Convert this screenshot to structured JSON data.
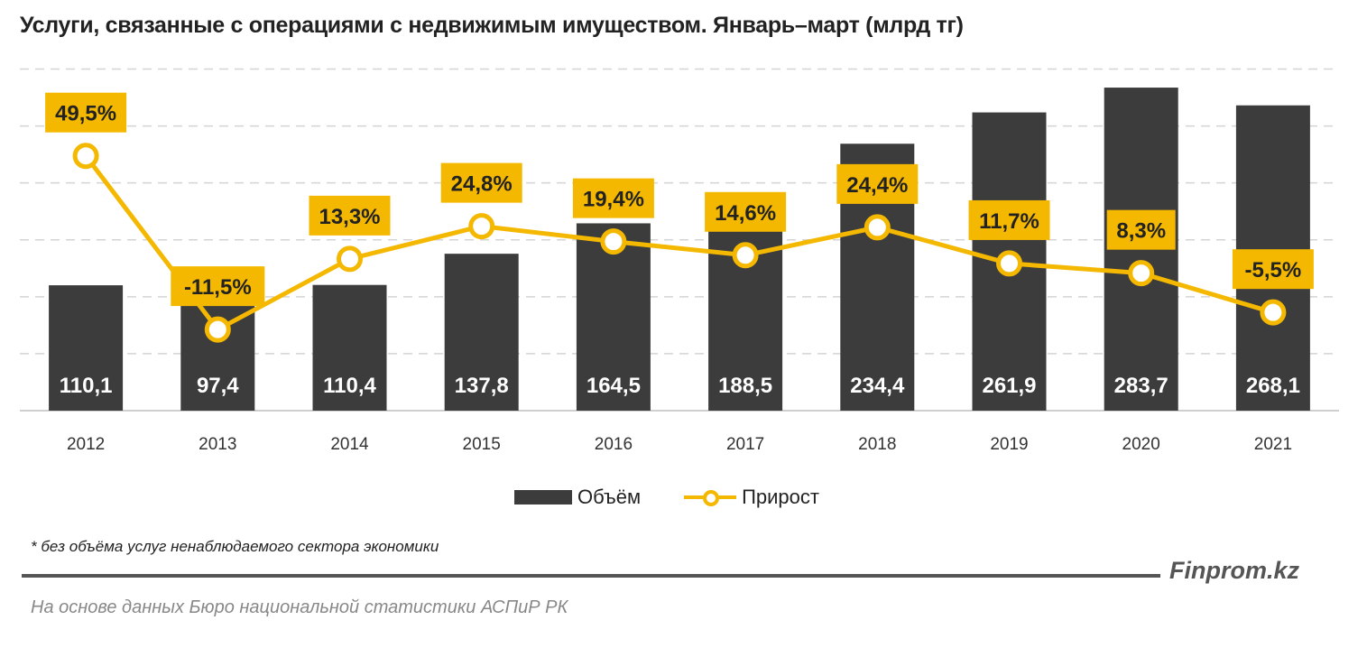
{
  "chart_data": {
    "type": "bar+line",
    "title": "Услуги, связанные с операциями с недвижимым имуществом. Январь–март (млрд тг)",
    "categories": [
      "2012",
      "2013",
      "2014",
      "2015",
      "2016",
      "2017",
      "2018",
      "2019",
      "2020",
      "2021"
    ],
    "series": [
      {
        "name": "Объём",
        "type": "bar",
        "axis": "primary",
        "color": "#3c3c3c",
        "values": [
          110.1,
          97.4,
          110.4,
          137.8,
          164.5,
          188.5,
          234.4,
          261.9,
          283.7,
          268.1
        ],
        "labels": [
          "110,1",
          "97,4",
          "110,4",
          "137,8",
          "164,5",
          "188,5",
          "234,4",
          "261,9",
          "283,7",
          "268,1"
        ]
      },
      {
        "name": "Прирост",
        "type": "line",
        "axis": "secondary",
        "color": "#f5b800",
        "values": [
          49.5,
          -11.5,
          13.3,
          24.8,
          19.4,
          14.6,
          24.4,
          11.7,
          8.3,
          -5.5
        ],
        "labels": [
          "49,5%",
          "-11,5%",
          "13,3%",
          "24,8%",
          "19,4%",
          "14,6%",
          "24,4%",
          "11,7%",
          "8,3%",
          "-5,5%"
        ]
      }
    ],
    "ylim": [
      0,
      300
    ],
    "y2lim": [
      -40,
      80
    ],
    "grid": true,
    "axis_labels_shown": false,
    "legend": "bottom"
  },
  "footnote": "* без объёма услуг ненаблюдаемого сектора экономики",
  "brand": "Finprom.kz",
  "source": "На основе данных Бюро национальной статистики АСПиР РК"
}
